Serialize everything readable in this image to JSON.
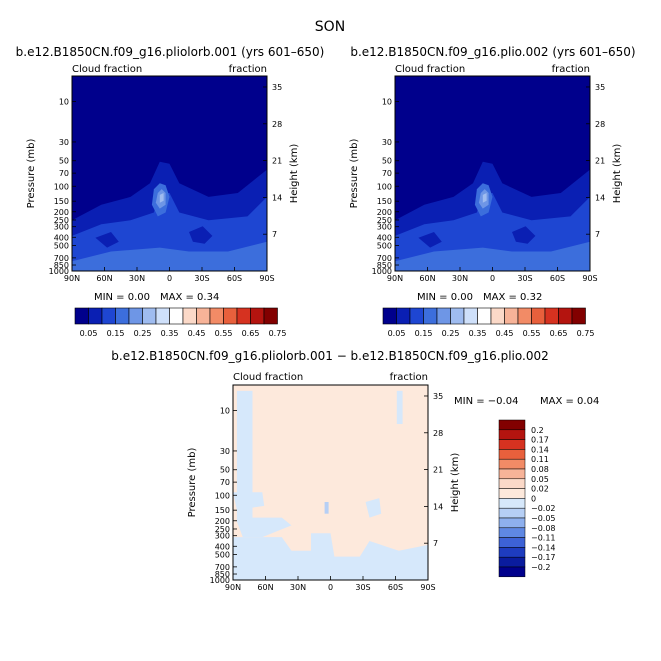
{
  "season_title": "SON",
  "panels": [
    {
      "id": "orb001",
      "title": "b.e12.B1850CN.f09_g16.pliolorb.001 (yrs 601–650)",
      "left_label": "Cloud fraction",
      "right_label": "fraction",
      "min_text": "MIN =    0.00",
      "max_text": "MAX =    0.34"
    },
    {
      "id": "plio002",
      "title": "b.e12.B1850CN.f09_g16.plio.002 (yrs 601–650)",
      "left_label": "Cloud fraction",
      "right_label": "fraction",
      "min_text": "MIN =    0.00",
      "max_text": "MAX =    0.32"
    },
    {
      "id": "diff",
      "title": "b.e12.B1850CN.f09_g16.pliolorb.001 − b.e12.B1850CN.f09_g16.plio.002",
      "left_label": "Cloud fraction",
      "right_label": "fraction",
      "min_text": "MIN =   −0.04",
      "max_text": "MAX =     0.04"
    }
  ],
  "axes": {
    "ylabel_left": "Pressure (mb)",
    "ylabel_right": "Height (km)",
    "pressure_ticks": [
      "10",
      "30",
      "50",
      "70",
      "100",
      "150",
      "200",
      "250",
      "300",
      "400",
      "500",
      "700",
      "850",
      "1000"
    ],
    "height_ticks": [
      "35",
      "28",
      "21",
      "14",
      "7"
    ],
    "lat_ticks": [
      "90N",
      "60N",
      "30N",
      "0",
      "30S",
      "60S",
      "90S"
    ]
  },
  "colorbar_main": {
    "labels": [
      "0.05",
      "0.15",
      "0.25",
      "0.35",
      "0.45",
      "0.55",
      "0.65",
      "0.75"
    ],
    "colors": [
      "#00008c",
      "#0a1fb3",
      "#1e46d2",
      "#3c6edc",
      "#6e96e6",
      "#9fbcf0",
      "#cfe0fa",
      "#ffffff",
      "#fbd9c8",
      "#f7b398",
      "#f28b66",
      "#e8603c",
      "#d63220",
      "#b4140f",
      "#820000"
    ]
  },
  "colorbar_diff": {
    "labels": [
      "0.2",
      "0.17",
      "0.14",
      "0.11",
      "0.08",
      "0.05",
      "0.02",
      "0",
      "−0.02",
      "−0.05",
      "−0.08",
      "−0.11",
      "−0.14",
      "−0.17",
      "−0.2"
    ],
    "colors": [
      "#820000",
      "#b4140f",
      "#d63220",
      "#e8603c",
      "#f28b66",
      "#f7b398",
      "#fbd9c8",
      "#fde9dc",
      "#d6e8fb",
      "#b6cff5",
      "#8eb0ee",
      "#5f88e3",
      "#3d62d6",
      "#1e3cbf",
      "#0a1c9e",
      "#00008c"
    ]
  },
  "chart_data": [
    {
      "type": "heatmap",
      "title": "b.e12.B1850CN.f09_g16.pliolorb.001 (yrs 601–650)",
      "xlabel": "",
      "ylabel": "Pressure (mb)",
      "x_ticks": [
        "90N",
        "60N",
        "30N",
        "0",
        "30S",
        "60S",
        "90S"
      ],
      "y_ticks_pressure": [
        10,
        30,
        50,
        70,
        100,
        150,
        200,
        250,
        300,
        400,
        500,
        700,
        850,
        1000
      ],
      "y2_ticks_height_km": [
        35,
        28,
        21,
        14,
        7
      ],
      "min": 0.0,
      "max": 0.34,
      "colorbar_levels": [
        0.05,
        0.15,
        0.25,
        0.35,
        0.45,
        0.55,
        0.65,
        0.75
      ]
    },
    {
      "type": "heatmap",
      "title": "b.e12.B1850CN.f09_g16.plio.002 (yrs 601–650)",
      "xlabel": "",
      "ylabel": "Pressure (mb)",
      "x_ticks": [
        "90N",
        "60N",
        "30N",
        "0",
        "30S",
        "60S",
        "90S"
      ],
      "y_ticks_pressure": [
        10,
        30,
        50,
        70,
        100,
        150,
        200,
        250,
        300,
        400,
        500,
        700,
        850,
        1000
      ],
      "y2_ticks_height_km": [
        35,
        28,
        21,
        14,
        7
      ],
      "min": 0.0,
      "max": 0.32,
      "colorbar_levels": [
        0.05,
        0.15,
        0.25,
        0.35,
        0.45,
        0.55,
        0.65,
        0.75
      ]
    },
    {
      "type": "heatmap",
      "title": "b.e12.B1850CN.f09_g16.pliolorb.001 − b.e12.B1850CN.f09_g16.plio.002",
      "xlabel": "",
      "ylabel": "Pressure (mb)",
      "x_ticks": [
        "90N",
        "60N",
        "30N",
        "0",
        "30S",
        "60S",
        "90S"
      ],
      "y_ticks_pressure": [
        10,
        30,
        50,
        70,
        100,
        150,
        200,
        250,
        300,
        400,
        500,
        700,
        850,
        1000
      ],
      "y2_ticks_height_km": [
        35,
        28,
        21,
        14,
        7
      ],
      "min": -0.04,
      "max": 0.04,
      "colorbar_levels": [
        0.2,
        0.17,
        0.14,
        0.11,
        0.08,
        0.05,
        0.02,
        0,
        -0.02,
        -0.05,
        -0.08,
        -0.11,
        -0.14,
        -0.17,
        -0.2
      ]
    }
  ]
}
